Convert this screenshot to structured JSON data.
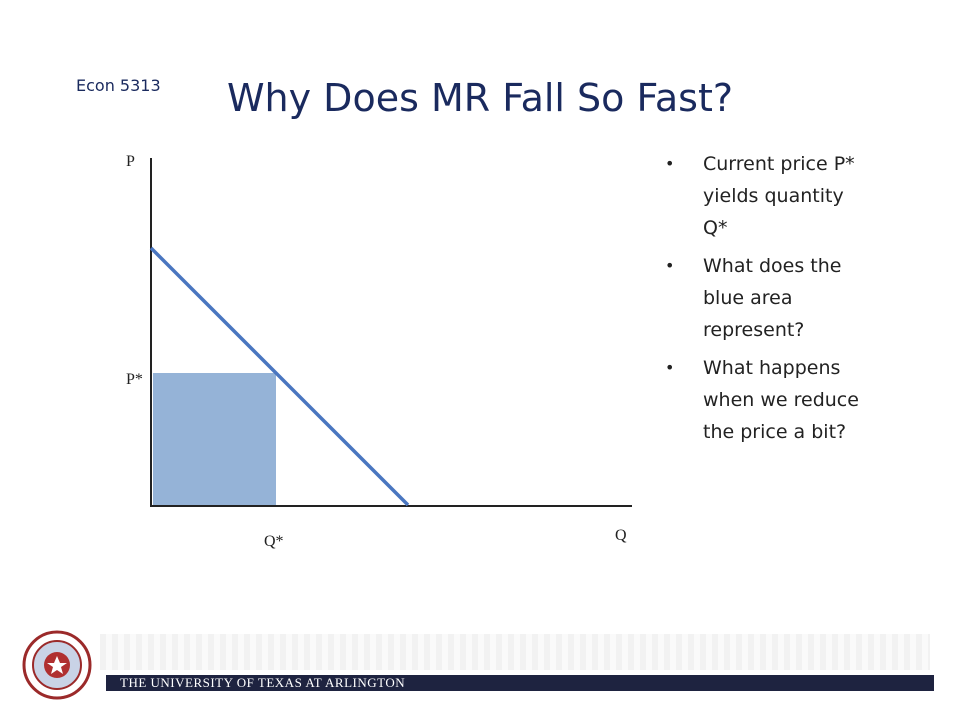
{
  "header": {
    "course": "Econ 5313",
    "title": "Why Does MR Fall So Fast?"
  },
  "diagram": {
    "y_axis_label": "P",
    "x_axis_label": "Q",
    "price_label": "P*",
    "quantity_label": "Q*"
  },
  "bullets": [
    "Current price P* yields quantity Q*",
    "What does the blue area represent?",
    "What happens when we reduce the price a bit?"
  ],
  "footer": {
    "institution": "THE UNIVERSITY OF TEXAS AT ARLINGTON"
  }
}
